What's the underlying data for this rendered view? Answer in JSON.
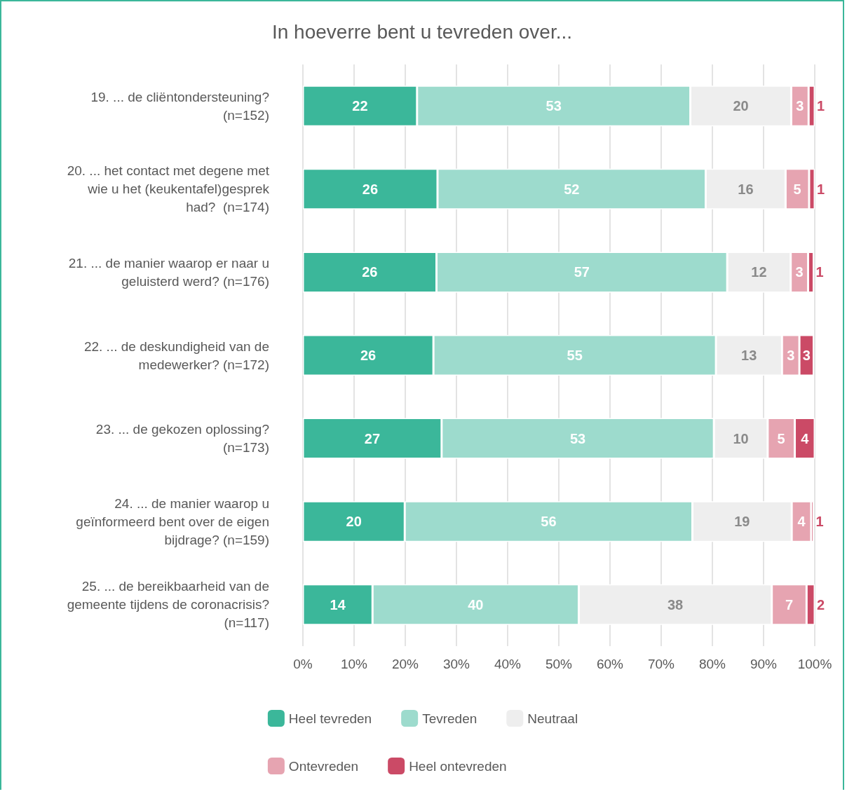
{
  "chart_data": {
    "type": "bar",
    "orientation": "horizontal",
    "stacked": true,
    "title": "In hoeverre bent u tevreden over...",
    "categories": [
      "19. ... de cliëntondersteuning?\n(n=152)",
      "20. ... het contact met degene met\nwie u het (keukentafel)gesprek\nhad?  (n=174)",
      "21. ... de manier waarop er naar u\ngeluisterd werd? (n=176)",
      "22. ... de deskundigheid van de\nmedewerker? (n=172)",
      "23. ... de gekozen oplossing?\n(n=173)",
      "24. ... de manier waarop u\ngeïnformeerd bent over de eigen\nbijdrage? (n=159)",
      "25. ... de bereikbaarheid van de\ngemeente tijdens de coronacrisis?\n(n=117)"
    ],
    "series": [
      {
        "name": "Heel tevreden",
        "color": "#3bb79a",
        "values": [
          22.3,
          26.3,
          26.1,
          25.5,
          27.1,
          19.9,
          13.6
        ],
        "value_labels": [
          "22",
          "26",
          "26",
          "26",
          "27",
          "20",
          "14"
        ]
      },
      {
        "name": "Tevreden",
        "color": "#9ddbcd",
        "values": [
          53.4,
          52.4,
          56.8,
          55.2,
          53.2,
          56.2,
          40.3
        ],
        "value_labels": [
          "53",
          "52",
          "57",
          "55",
          "53",
          "56",
          "40"
        ]
      },
      {
        "name": "Neutraal",
        "color": "#eeeeee",
        "values": [
          19.7,
          15.6,
          12.4,
          12.9,
          10.5,
          19.4,
          37.7
        ],
        "value_labels": [
          "20",
          "16",
          "12",
          "13",
          "10",
          "19",
          "38"
        ]
      },
      {
        "name": "Ontevreden",
        "color": "#e6a4b1",
        "values": [
          3.4,
          4.6,
          3.4,
          3.4,
          5.3,
          3.8,
          6.8
        ],
        "value_labels": [
          "3",
          "5",
          "3",
          "3",
          "5",
          "4",
          "7"
        ]
      },
      {
        "name": "Heel ontevreden",
        "color": "#cb4a66",
        "values": [
          1.2,
          1.1,
          1.1,
          2.8,
          3.9,
          0.5,
          1.6
        ],
        "value_labels": [
          "1",
          "1",
          "1",
          "3",
          "4",
          "1",
          "2"
        ]
      }
    ],
    "xlim": [
      0,
      100
    ],
    "xticks": [
      {
        "value": 0,
        "label": "0%"
      },
      {
        "value": 10,
        "label": "10%"
      },
      {
        "value": 20,
        "label": "20%"
      },
      {
        "value": 30,
        "label": "30%"
      },
      {
        "value": 40,
        "label": "40%"
      },
      {
        "value": 50,
        "label": "50%"
      },
      {
        "value": 60,
        "label": "60%"
      },
      {
        "value": 70,
        "label": "70%"
      },
      {
        "value": 80,
        "label": "80%"
      },
      {
        "value": 90,
        "label": "90%"
      },
      {
        "value": 100,
        "label": "100%"
      }
    ],
    "grid": "x",
    "legend": "bottom"
  }
}
